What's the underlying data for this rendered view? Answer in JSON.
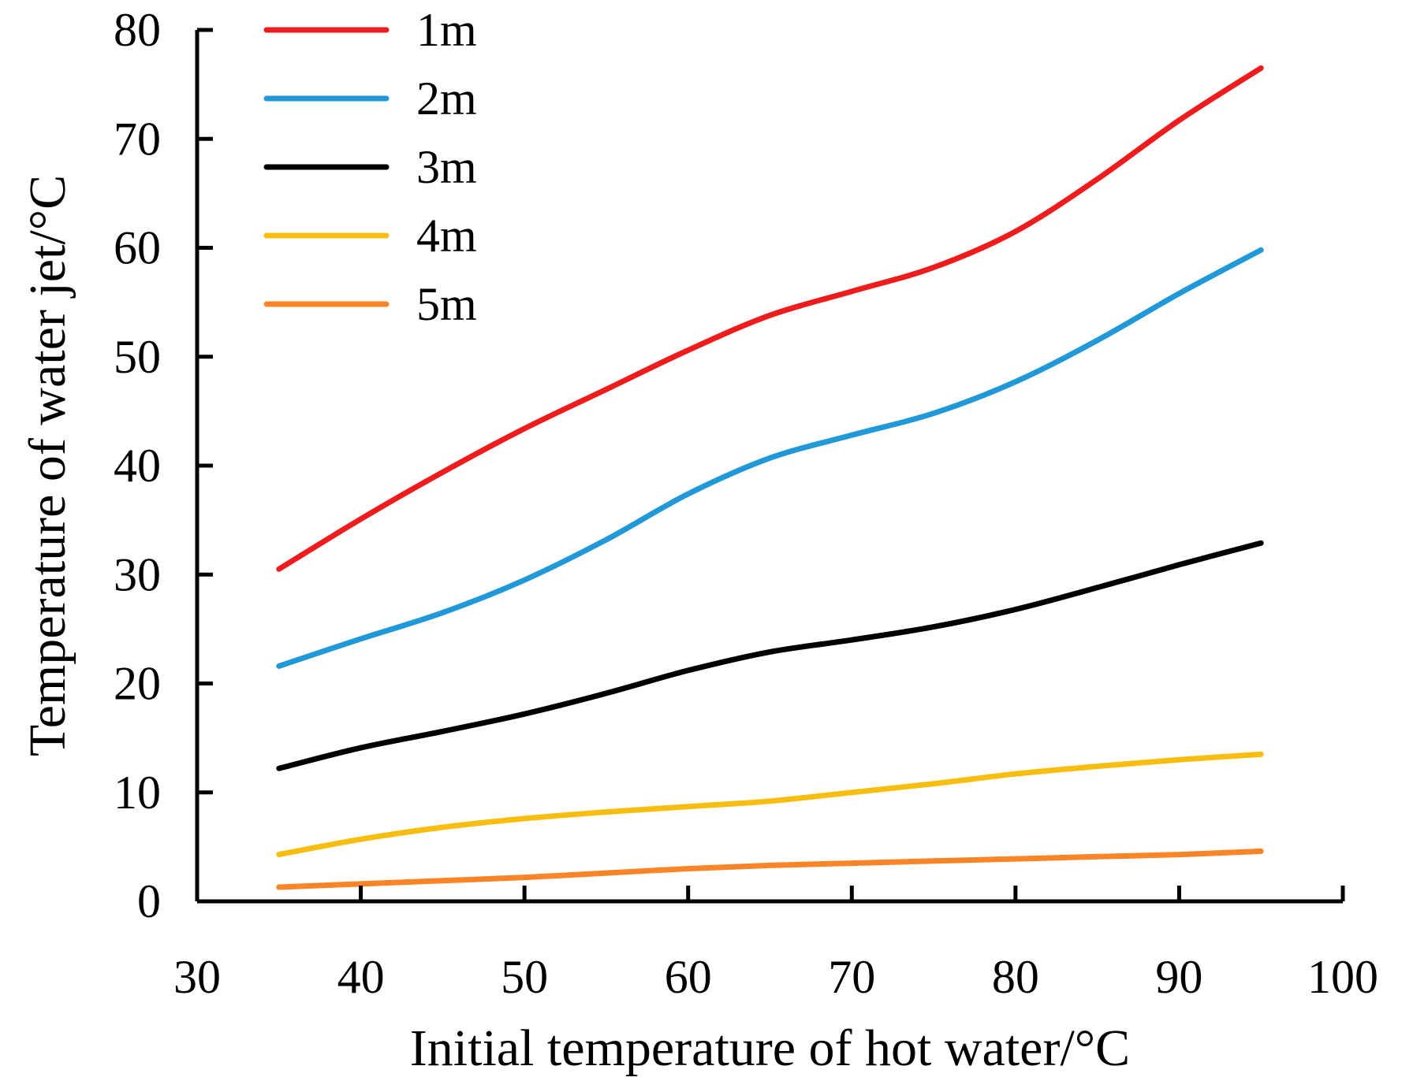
{
  "chart_data": {
    "type": "line",
    "title": "",
    "xlabel": "Initial temperature of hot water/°C",
    "ylabel": "Temperature of water jet/°C",
    "xlim": [
      30,
      100
    ],
    "ylim": [
      0,
      80
    ],
    "xticks": [
      30,
      40,
      50,
      60,
      70,
      80,
      90,
      100
    ],
    "yticks": [
      0,
      10,
      20,
      30,
      40,
      50,
      60,
      70,
      80
    ],
    "grid": false,
    "legend_position": "top-left",
    "x": [
      35,
      40,
      45,
      50,
      55,
      60,
      65,
      70,
      75,
      80,
      85,
      90,
      95
    ],
    "series": [
      {
        "name": "1m",
        "color": "#ee1c1c",
        "values": [
          30.5,
          35.1,
          39.4,
          43.4,
          47.0,
          50.6,
          53.8,
          56.0,
          58.2,
          61.5,
          66.3,
          71.7,
          76.5
        ]
      },
      {
        "name": "2m",
        "color": "#2199d8",
        "values": [
          21.6,
          24.1,
          26.5,
          29.5,
          33.2,
          37.4,
          40.7,
          42.8,
          44.8,
          47.7,
          51.5,
          55.8,
          59.8
        ]
      },
      {
        "name": "3m",
        "color": "#000000",
        "values": [
          12.2,
          14.1,
          15.6,
          17.2,
          19.1,
          21.2,
          22.9,
          24.0,
          25.2,
          26.8,
          28.8,
          30.9,
          32.9
        ]
      },
      {
        "name": "4m",
        "color": "#f7be10",
        "values": [
          4.3,
          5.7,
          6.8,
          7.6,
          8.2,
          8.7,
          9.2,
          10.0,
          10.8,
          11.7,
          12.4,
          13.0,
          13.5
        ]
      },
      {
        "name": "5m",
        "color": "#fb8427",
        "values": [
          1.3,
          1.6,
          1.9,
          2.2,
          2.6,
          3.0,
          3.3,
          3.5,
          3.7,
          3.9,
          4.1,
          4.3,
          4.6
        ]
      }
    ]
  }
}
